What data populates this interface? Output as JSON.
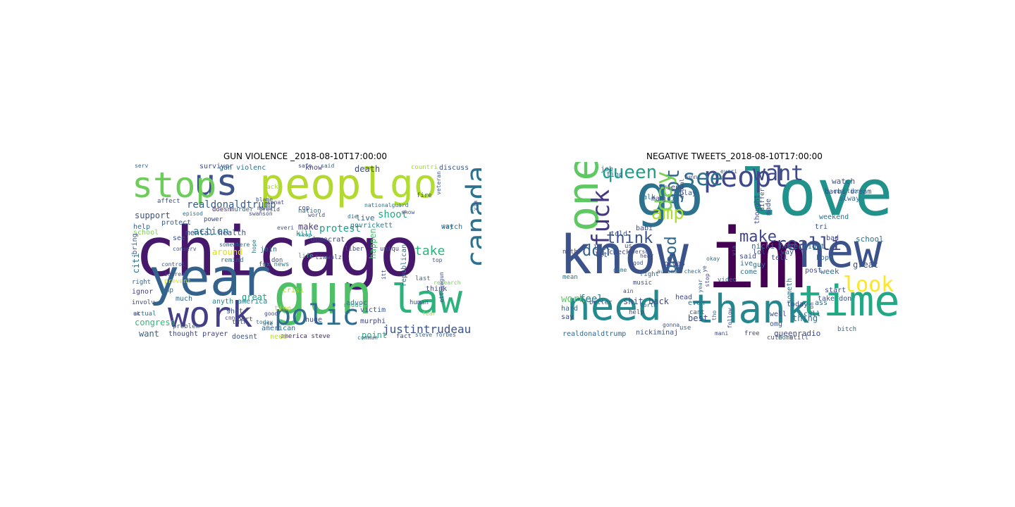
{
  "chart_data": [
    {
      "type": "wordcloud",
      "title": "GUN VIOLENCE _2018-08-10T17:00:00",
      "words": [
        {
          "text": "chicago",
          "color": "#46186b"
        },
        {
          "text": "peopl",
          "color": "#b3d930"
        },
        {
          "text": "year",
          "color": "#33628d"
        },
        {
          "text": "gun",
          "color": "#4ec065"
        },
        {
          "text": "us",
          "color": "#3b528b"
        },
        {
          "text": "go",
          "color": "#b0dd2f"
        },
        {
          "text": "stop",
          "color": "#6dcd59"
        },
        {
          "text": "work",
          "color": "#433e85"
        },
        {
          "text": "law",
          "color": "#2db27d"
        },
        {
          "text": "polic",
          "color": "#2f6c8e"
        },
        {
          "text": "canada",
          "color": "#2c728e"
        },
        {
          "text": "justintrudeau",
          "color": "#3b528b"
        },
        {
          "text": "realdonaldtrump",
          "color": "#365c8d"
        },
        {
          "text": "protest",
          "color": "#1f9e89"
        },
        {
          "text": "action",
          "color": "#27808e"
        },
        {
          "text": "take",
          "color": "#2db27d"
        },
        {
          "text": "shoot",
          "color": "#25ac82"
        },
        {
          "text": "happen",
          "color": "#4ac16d"
        },
        {
          "text": "citi",
          "color": "#2c728e"
        },
        {
          "text": "death",
          "color": "#3e4a89"
        },
        {
          "text": "congress",
          "color": "#35b779"
        },
        {
          "text": "support",
          "color": "#3b528b"
        },
        {
          "text": "point",
          "color": "#27ad81"
        },
        {
          "text": "mental health",
          "color": "#3d4e8a"
        },
        {
          "text": "great",
          "color": "#1fa088"
        },
        {
          "text": "make",
          "color": "#453882"
        },
        {
          "text": "want",
          "color": "#33638d"
        },
        {
          "text": "thought prayer",
          "color": "#404688"
        },
        {
          "text": "america steve",
          "color": "#482475"
        },
        {
          "text": "need",
          "color": "#b8de29"
        },
        {
          "text": "doesnt",
          "color": "#3b528b"
        },
        {
          "text": "american",
          "color": "#31688e"
        },
        {
          "text": "huge",
          "color": "#3e4989"
        },
        {
          "text": "murphi",
          "color": "#414487"
        },
        {
          "text": "victim",
          "color": "#3a548c"
        },
        {
          "text": "advoc",
          "color": "#306a8e"
        },
        {
          "text": "crisi",
          "color": "#9bd93c"
        },
        {
          "text": "govrickett",
          "color": "#287d8e"
        },
        {
          "text": "live",
          "color": "#355f8d"
        },
        {
          "text": "know",
          "color": "#433e85"
        },
        {
          "text": "help",
          "color": "#31678e"
        },
        {
          "text": "school",
          "color": "#7ad151"
        },
        {
          "text": "protect",
          "color": "#34608d"
        },
        {
          "text": "power",
          "color": "#3e4989"
        },
        {
          "text": "doesn",
          "color": "#482576"
        },
        {
          "text": "watch",
          "color": "#2f6c8e"
        },
        {
          "text": "say",
          "color": "#2a788e"
        },
        {
          "text": "think",
          "color": "#3f4788"
        },
        {
          "text": "human",
          "color": "#3b528b"
        },
        {
          "text": "survivor",
          "color": "#3d4d8a"
        },
        {
          "text": "discuss",
          "color": "#39568c"
        },
        {
          "text": "countri",
          "color": "#a2da37"
        },
        {
          "text": "gun violenc",
          "color": "#2e6e8e"
        },
        {
          "text": "see",
          "color": "#3e4a89"
        },
        {
          "text": "much",
          "color": "#31678e"
        },
        {
          "text": "around",
          "color": "#d8e219"
        },
        {
          "text": "join",
          "color": "#2c718e"
        },
        {
          "text": "shot",
          "color": "#3b528b"
        },
        {
          "text": "time",
          "color": "#b5de2b"
        },
        {
          "text": "fact",
          "color": "#3e4a89"
        },
        {
          "text": "amp",
          "color": "#306a8e"
        },
        {
          "text": "bring",
          "color": "#3b528b"
        },
        {
          "text": "right",
          "color": "#355e8d"
        },
        {
          "text": "ignor",
          "color": "#433e85"
        },
        {
          "text": "involv",
          "color": "#3e4989"
        },
        {
          "text": "actual",
          "color": "#2c728e"
        },
        {
          "text": "serv",
          "color": "#31688e"
        },
        {
          "text": "affect",
          "color": "#3b528b"
        },
        {
          "text": "talk",
          "color": "#3f4788"
        },
        {
          "text": "anyth america",
          "color": "#26828e"
        },
        {
          "text": "problem",
          "color": "#39568c"
        },
        {
          "text": "today",
          "color": "#2a788e"
        },
        {
          "text": "democrat",
          "color": "#3f4788"
        },
        {
          "text": "kill",
          "color": "#238a8d"
        },
        {
          "text": "keep",
          "color": "#1f968b"
        },
        {
          "text": "everi",
          "color": "#3b528b"
        },
        {
          "text": "mani",
          "color": "#39568c"
        },
        {
          "text": "world",
          "color": "#3e4a89"
        },
        {
          "text": "nation",
          "color": "#2c728e"
        },
        {
          "text": "die",
          "color": "#31688e"
        },
        {
          "text": "life",
          "color": "#35b779"
        },
        {
          "text": "top",
          "color": "#3b528b"
        },
        {
          "text": "last",
          "color": "#2c728e"
        },
        {
          "text": "cop",
          "color": "#3e4989"
        },
        {
          "text": "safe",
          "color": "#3e4a89"
        },
        {
          "text": "said",
          "color": "#31688e"
        },
        {
          "text": "show",
          "color": "#39568c"
        },
        {
          "text": "blame",
          "color": "#3b528b"
        },
        {
          "text": "back",
          "color": "#a5db36"
        },
        {
          "text": "don",
          "color": "#3f4788"
        },
        {
          "text": "remind",
          "color": "#2c728e"
        },
        {
          "text": "increas",
          "color": "#3e4989"
        },
        {
          "text": "prevent",
          "color": "#d2e21b"
        },
        {
          "text": "control",
          "color": "#3b528b"
        },
        {
          "text": "reduc",
          "color": "#35b779"
        },
        {
          "text": "fear",
          "color": "#a0da39"
        },
        {
          "text": "liber",
          "color": "#39568c"
        },
        {
          "text": "uniqu",
          "color": "#3e4a89"
        },
        {
          "text": "republican",
          "color": "#2c728e"
        },
        {
          "text": "research",
          "color": "#6ece58"
        },
        {
          "text": "port",
          "color": "#3f4788"
        },
        {
          "text": "use",
          "color": "#31688e"
        },
        {
          "text": "veteran",
          "color": "#3b528b"
        },
        {
          "text": "via",
          "color": "#3e4989"
        },
        {
          "text": "fox news",
          "color": "#2a788e"
        },
        {
          "text": "somewhere",
          "color": "#31688e"
        },
        {
          "text": "tiwwalz",
          "color": "#3b528b"
        },
        {
          "text": "good",
          "color": "#3f4788"
        },
        {
          "text": "cnn",
          "color": "#3e4a89"
        },
        {
          "text": "episod",
          "color": "#2c728e"
        },
        {
          "text": "presid",
          "color": "#3e4989"
        },
        {
          "text": "murder",
          "color": "#31688e"
        },
        {
          "text": "conserv",
          "color": "#3b528b"
        },
        {
          "text": "swanson",
          "color": "#3e4a89"
        },
        {
          "text": "nationalguard",
          "color": "#2c728e"
        },
        {
          "text": "ottawagun",
          "color": "#3e4989"
        },
        {
          "text": "steve forbes",
          "color": "#31688e"
        },
        {
          "text": "uk",
          "color": "#3b528b"
        },
        {
          "text": "senat",
          "color": "#3e4a89"
        },
        {
          "text": "hope",
          "color": "#2c728e"
        },
        {
          "text": "itt",
          "color": "#3e4989"
        },
        {
          "text": "commun",
          "color": "#31688e"
        },
        {
          "text": "fire",
          "color": "#3b528b"
        }
      ]
    },
    {
      "type": "wordcloud",
      "title": "NEGATIVE TWEETS_2018-08-10T17:00:00",
      "words": [
        {
          "text": "im",
          "color": "#440154"
        },
        {
          "text": "love",
          "color": "#21918c"
        },
        {
          "text": "go",
          "color": "#2c728e"
        },
        {
          "text": "know",
          "color": "#3b528b"
        },
        {
          "text": "new",
          "color": "#3b528b"
        },
        {
          "text": "need",
          "color": "#238a8d"
        },
        {
          "text": "thank",
          "color": "#24868e"
        },
        {
          "text": "time",
          "color": "#22a884"
        },
        {
          "text": "one",
          "color": "#5ec962"
        },
        {
          "text": "peopl",
          "color": "#3e4a89"
        },
        {
          "text": "want",
          "color": "#3e4989"
        },
        {
          "text": "got",
          "color": "#31688e"
        },
        {
          "text": "see",
          "color": "#2c728e"
        },
        {
          "text": "day",
          "color": "#7ad151"
        },
        {
          "text": "fuck",
          "color": "#453882"
        },
        {
          "text": "amp",
          "color": "#addc30"
        },
        {
          "text": "queen",
          "color": "#1f9e89"
        },
        {
          "text": "good",
          "color": "#31688e"
        },
        {
          "text": "make",
          "color": "#404688"
        },
        {
          "text": "think",
          "color": "#3b528b"
        },
        {
          "text": "dont",
          "color": "#355f8d"
        },
        {
          "text": "realli",
          "color": "#3e4989"
        },
        {
          "text": "look",
          "color": "#fde725"
        },
        {
          "text": "work",
          "color": "#5ec962"
        },
        {
          "text": "feel",
          "color": "#2a788e"
        },
        {
          "text": "shit back",
          "color": "#3e4a89"
        },
        {
          "text": "realdonaldtrump",
          "color": "#31688e"
        },
        {
          "text": "nickiminaj",
          "color": "#3b528b"
        },
        {
          "text": "queenradio",
          "color": "#3e4989"
        },
        {
          "text": "thing",
          "color": "#2c728e"
        },
        {
          "text": "best",
          "color": "#3e4a89"
        },
        {
          "text": "call",
          "color": "#31688e"
        },
        {
          "text": "take don",
          "color": "#3b528b"
        },
        {
          "text": "today",
          "color": "#3e4989"
        },
        {
          "text": "great",
          "color": "#3b528b"
        },
        {
          "text": "week",
          "color": "#2c728e"
        },
        {
          "text": "post",
          "color": "#3e4a89"
        },
        {
          "text": "hope",
          "color": "#31688e"
        },
        {
          "text": "tri",
          "color": "#3b528b"
        },
        {
          "text": "weekend",
          "color": "#2c728e"
        },
        {
          "text": "say",
          "color": "#3e4989"
        },
        {
          "text": "hard",
          "color": "#31688e"
        },
        {
          "text": "let",
          "color": "#3e4a89"
        },
        {
          "text": "last",
          "color": "#3b528b"
        },
        {
          "text": "job",
          "color": "#2c728e"
        },
        {
          "text": "check",
          "color": "#3e4989"
        },
        {
          "text": "find",
          "color": "#31688e"
        },
        {
          "text": "babi",
          "color": "#3e4a89"
        },
        {
          "text": "told",
          "color": "#3b528b"
        },
        {
          "text": "talk",
          "color": "#2c728e"
        },
        {
          "text": "man",
          "color": "#3e4989"
        },
        {
          "text": "join",
          "color": "#31688e"
        },
        {
          "text": "friend",
          "color": "#3e4a89"
        },
        {
          "text": "play",
          "color": "#3b528b"
        },
        {
          "text": "nicki never",
          "color": "#2c728e"
        },
        {
          "text": "lol",
          "color": "#3e4989"
        },
        {
          "text": "guy",
          "color": "#31688e"
        },
        {
          "text": "tell",
          "color": "#3e4a89"
        },
        {
          "text": "way",
          "color": "#3b528b"
        },
        {
          "text": "night",
          "color": "#2c728e"
        },
        {
          "text": "bad",
          "color": "#3e4989"
        },
        {
          "text": "alway",
          "color": "#31688e"
        },
        {
          "text": "barbi dream",
          "color": "#3e4a89"
        },
        {
          "text": "watch",
          "color": "#3b528b"
        },
        {
          "text": "school",
          "color": "#2c728e"
        },
        {
          "text": "start",
          "color": "#3e4989"
        },
        {
          "text": "ass",
          "color": "#31688e"
        },
        {
          "text": "well",
          "color": "#3e4a89"
        },
        {
          "text": "omg",
          "color": "#3b528b"
        },
        {
          "text": "come",
          "color": "#2c728e"
        },
        {
          "text": "said",
          "color": "#3e4989"
        },
        {
          "text": "ive",
          "color": "#31688e"
        },
        {
          "text": "pleas",
          "color": "#3e4a89"
        },
        {
          "text": "cant",
          "color": "#3b528b"
        },
        {
          "text": "even",
          "color": "#2c728e"
        },
        {
          "text": "help",
          "color": "#3e4989"
        },
        {
          "text": "use",
          "color": "#31688e"
        },
        {
          "text": "head",
          "color": "#3e4a89"
        },
        {
          "text": "better",
          "color": "#3b528b"
        },
        {
          "text": "mean",
          "color": "#2c728e"
        },
        {
          "text": "music",
          "color": "#3e4989"
        },
        {
          "text": "right",
          "color": "#31688e"
        },
        {
          "text": "noth",
          "color": "#3e4a89"
        },
        {
          "text": "god",
          "color": "#3b528b"
        },
        {
          "text": "game",
          "color": "#2c728e"
        },
        {
          "text": "hear",
          "color": "#3e4989"
        },
        {
          "text": "automat check",
          "color": "#31688e"
        },
        {
          "text": "free",
          "color": "#3e4a89"
        },
        {
          "text": "cute",
          "color": "#3b528b"
        },
        {
          "text": "home",
          "color": "#2c728e"
        },
        {
          "text": "still",
          "color": "#3e4989"
        },
        {
          "text": "bitch",
          "color": "#31688e"
        },
        {
          "text": "thought",
          "color": "#3e4a89"
        },
        {
          "text": "made",
          "color": "#3b528b"
        },
        {
          "text": "someth",
          "color": "#2c728e"
        },
        {
          "text": "oh",
          "color": "#3e4989"
        },
        {
          "text": "everi",
          "color": "#31688e"
        },
        {
          "text": "actual",
          "color": "#3e4a89"
        },
        {
          "text": "ye",
          "color": "#3b528b"
        },
        {
          "text": "video",
          "color": "#2c728e"
        },
        {
          "text": "mani",
          "color": "#3e4989"
        },
        {
          "text": "tho",
          "color": "#31688e"
        },
        {
          "text": "ain",
          "color": "#3e4a89"
        },
        {
          "text": "person",
          "color": "#3b528b"
        },
        {
          "text": "year",
          "color": "#2c728e"
        },
        {
          "text": "stop",
          "color": "#3e4989"
        },
        {
          "text": "via",
          "color": "#31688e"
        },
        {
          "text": "us",
          "color": "#3e4a89"
        },
        {
          "text": "gonna",
          "color": "#3b528b"
        },
        {
          "text": "okay",
          "color": "#2c728e"
        },
        {
          "text": "funni",
          "color": "#3e4989"
        },
        {
          "text": "world",
          "color": "#31688e"
        },
        {
          "text": "follow",
          "color": "#3e4a89"
        },
        {
          "text": "differ",
          "color": "#3b528b"
        },
        {
          "text": "question",
          "color": "#2c728e"
        }
      ]
    }
  ]
}
